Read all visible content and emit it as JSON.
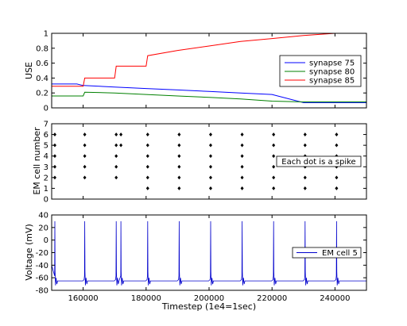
{
  "chart_data": [
    {
      "type": "line",
      "ylabel": "USE",
      "xlim": [
        150000,
        250000
      ],
      "ylim": [
        0,
        1
      ],
      "yticks": [
        "0",
        "0.2",
        "0.4",
        "0.6",
        "0.8",
        "1"
      ],
      "legend_position": "right",
      "series": [
        {
          "name": "synapse 75",
          "color": "#0000ff",
          "points": [
            [
              150000,
              0.32
            ],
            [
              154000,
              0.32
            ],
            [
              158000,
              0.32
            ],
            [
              160000,
              0.3
            ],
            [
              170000,
              0.28
            ],
            [
              180000,
              0.26
            ],
            [
              190000,
              0.24
            ],
            [
              200000,
              0.22
            ],
            [
              210000,
              0.2
            ],
            [
              220000,
              0.18
            ],
            [
              230000,
              0.07
            ],
            [
              240000,
              0.07
            ],
            [
              250000,
              0.07
            ]
          ]
        },
        {
          "name": "synapse 80",
          "color": "#008000",
          "points": [
            [
              150000,
              0.16
            ],
            [
              160000,
              0.16
            ],
            [
              160500,
              0.21
            ],
            [
              170000,
              0.2
            ],
            [
              180000,
              0.18
            ],
            [
              190000,
              0.16
            ],
            [
              200000,
              0.14
            ],
            [
              210000,
              0.12
            ],
            [
              220000,
              0.09
            ],
            [
              230000,
              0.08
            ],
            [
              250000,
              0.08
            ]
          ]
        },
        {
          "name": "synapse 85",
          "color": "#ff0000",
          "points": [
            [
              150000,
              0.29
            ],
            [
              160000,
              0.29
            ],
            [
              160500,
              0.4
            ],
            [
              170000,
              0.4
            ],
            [
              170500,
              0.56
            ],
            [
              180000,
              0.56
            ],
            [
              180500,
              0.7
            ],
            [
              190000,
              0.77
            ],
            [
              200000,
              0.83
            ],
            [
              210000,
              0.89
            ],
            [
              220000,
              0.93
            ],
            [
              230000,
              0.97
            ],
            [
              240000,
              1.0
            ],
            [
              250000,
              1.0
            ]
          ]
        }
      ]
    },
    {
      "type": "scatter",
      "ylabel": "EM cell number",
      "xlim": [
        150000,
        250000
      ],
      "ylim": [
        0,
        7
      ],
      "yticks": [
        "0",
        "1",
        "2",
        "3",
        "4",
        "5",
        "6",
        "7"
      ],
      "annotation": "Each dot is a spike",
      "spike_times": [
        151000,
        160500,
        170500,
        172000,
        180500,
        190500,
        200500,
        210500,
        220500,
        230500,
        240500
      ],
      "cells_by_time": [
        [
          2,
          3,
          4,
          5,
          6
        ],
        [
          2,
          3,
          4,
          5,
          6
        ],
        [
          2,
          3,
          4,
          5,
          6
        ],
        [
          5,
          6
        ],
        [
          1,
          2,
          3,
          4,
          5,
          6
        ],
        [
          1,
          2,
          3,
          4,
          5,
          6
        ],
        [
          1,
          2,
          3,
          4,
          5,
          6
        ],
        [
          1,
          2,
          3,
          4,
          5,
          6
        ],
        [
          1,
          2,
          3,
          4,
          5,
          6
        ],
        [
          1,
          2,
          3,
          4,
          5,
          6
        ],
        [
          1,
          2,
          3,
          4,
          5,
          6
        ]
      ]
    },
    {
      "type": "line",
      "ylabel": "Voltage (mV)",
      "xlabel": "Timestep (1e4=1sec)",
      "xlim": [
        150000,
        250000
      ],
      "ylim": [
        -80,
        40
      ],
      "yticks": [
        "-80",
        "-60",
        "-40",
        "-20",
        "0",
        "20",
        "40"
      ],
      "xticks": [
        "160000",
        "180000",
        "200000",
        "220000",
        "240000"
      ],
      "legend_position": "right",
      "series": [
        {
          "name": "EM cell 5",
          "color": "#0000cc",
          "resting_mv": -65,
          "peak_mv": 30,
          "spike_times": [
            151000,
            160500,
            170500,
            172000,
            180500,
            190500,
            200500,
            210500,
            220500,
            230500,
            240500
          ]
        }
      ]
    }
  ]
}
